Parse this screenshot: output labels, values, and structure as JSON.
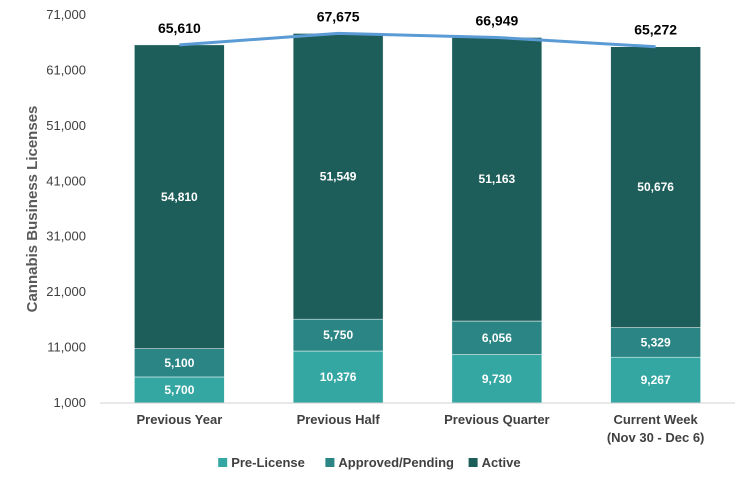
{
  "chart_data": {
    "type": "bar",
    "stacked": true,
    "categories": [
      "Previous Year",
      "Previous Half",
      "Previous Quarter",
      "Current Week"
    ],
    "category_sublabels": [
      "",
      "",
      "",
      "(Nov 30 - Dec 6)"
    ],
    "series": [
      {
        "name": "Pre-License",
        "values": [
          5700,
          10376,
          9730,
          9267
        ],
        "color": "#35A7A3"
      },
      {
        "name": "Approved/Pending",
        "values": [
          5100,
          5750,
          6056,
          5329
        ],
        "color": "#2A8584"
      },
      {
        "name": "Active",
        "values": [
          54810,
          51549,
          51163,
          50676
        ],
        "color": "#1E5E5A"
      }
    ],
    "segment_labels": {
      "Pre-License": [
        "5,700",
        "10,376",
        "9,730",
        "9,267"
      ],
      "Approved/Pending": [
        "5,100",
        "5,750",
        "6,056",
        "5,329"
      ],
      "Active": [
        "54,810",
        "51,549",
        "51,163",
        "50,676"
      ]
    },
    "totals": [
      65610,
      67675,
      66949,
      65272
    ],
    "total_labels": [
      "65,610",
      "67,675",
      "66,949",
      "65,272"
    ],
    "total_line_color": "#5B9BD5",
    "ylabel": "Cannabis  Business Licenses",
    "ylim": [
      1000,
      71000
    ],
    "yticks": [
      1000,
      11000,
      21000,
      31000,
      41000,
      51000,
      61000,
      71000
    ],
    "ytick_labels": [
      "1,000",
      "11,000",
      "21,000",
      "31,000",
      "41,000",
      "51,000",
      "61,000",
      "71,000"
    ],
    "legend_position": "bottom",
    "grid": false
  }
}
